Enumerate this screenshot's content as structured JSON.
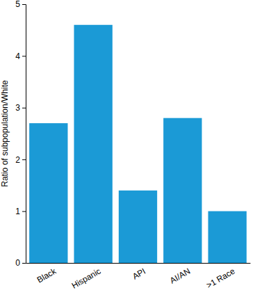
{
  "chart_data": {
    "type": "bar",
    "y_label": "Ratio of subpopulation/White",
    "categories": [
      "Black",
      "Hispanic",
      "API",
      "AI/AN",
      ">1 Race"
    ],
    "values": [
      2.7,
      4.6,
      1.4,
      2.8,
      1.0
    ],
    "color": "#1b9ad6",
    "ylim": [
      0,
      5
    ],
    "yticks": [
      0,
      1,
      2,
      3,
      4,
      5
    ],
    "grid": false
  }
}
